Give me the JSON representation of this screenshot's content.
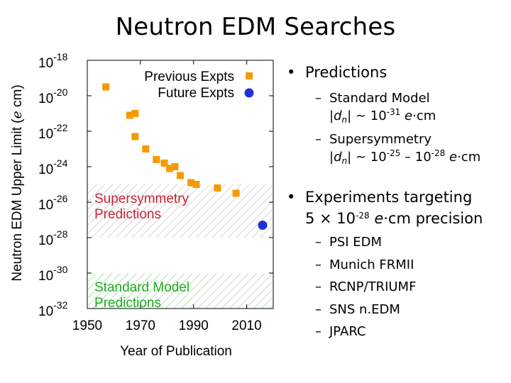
{
  "title": "Neutron EDM Searches",
  "chart_data": {
    "type": "scatter",
    "ylabel": "Neutron EDM Upper Limit (e cm)",
    "ylabel_pre": "Neutron EDM Upper Limit (",
    "ylabel_unit": "e",
    "ylabel_post": " cm)",
    "xlabel": "Year of Publication",
    "xlim": [
      1950,
      2020
    ],
    "ylim_log10": [
      -32,
      -18
    ],
    "x_ticks": [
      1950,
      1970,
      1990,
      2010
    ],
    "y_ticks": [
      {
        "exp": -18,
        "base": "10",
        "sup": "-18"
      },
      {
        "exp": -20,
        "base": "10",
        "sup": "-20"
      },
      {
        "exp": -22,
        "base": "10",
        "sup": "-22"
      },
      {
        "exp": -24,
        "base": "10",
        "sup": "-24"
      },
      {
        "exp": -26,
        "base": "10",
        "sup": "-26"
      },
      {
        "exp": -28,
        "base": "10",
        "sup": "-28"
      },
      {
        "exp": -30,
        "base": "10",
        "sup": "-30"
      },
      {
        "exp": -32,
        "base": "10",
        "sup": "-32"
      }
    ],
    "series": [
      {
        "name": "Previous Expts",
        "color": "#f59a00",
        "marker": "square",
        "points": [
          {
            "x": 1957,
            "y_log10": -19.5
          },
          {
            "x": 1966,
            "y_log10": -21.1
          },
          {
            "x": 1968,
            "y_log10": -21.0
          },
          {
            "x": 1968,
            "y_log10": -22.3
          },
          {
            "x": 1972,
            "y_log10": -23.0
          },
          {
            "x": 1976,
            "y_log10": -23.6
          },
          {
            "x": 1979,
            "y_log10": -23.8
          },
          {
            "x": 1981,
            "y_log10": -24.1
          },
          {
            "x": 1983,
            "y_log10": -24.0
          },
          {
            "x": 1985,
            "y_log10": -24.5
          },
          {
            "x": 1989,
            "y_log10": -24.9
          },
          {
            "x": 1991,
            "y_log10": -25.0
          },
          {
            "x": 1999,
            "y_log10": -25.2
          },
          {
            "x": 2006,
            "y_log10": -25.5
          }
        ]
      },
      {
        "name": "Future Expts",
        "color": "#1c31d8",
        "marker": "circle",
        "points": [
          {
            "x": 2016,
            "y_log10": -27.3
          }
        ]
      }
    ],
    "bands": [
      {
        "label_lines": [
          "Supersymmetry",
          "Predictions"
        ],
        "from_log10": -25,
        "to_log10": -28,
        "color": "#cc2233",
        "hatch_color": "#b8a8a8"
      },
      {
        "label_lines": [
          "Standard Model",
          "Predictions"
        ],
        "from_log10": -30,
        "to_log10": -32,
        "color": "#22aa22",
        "hatch_color": "#66cc66"
      }
    ],
    "legend_position": "top-right"
  },
  "bullets": {
    "predictions": {
      "label": "Predictions",
      "sm_label": "Standard Model",
      "sm_sup": "-31",
      "susy_label": "Supersymmetry",
      "susy_sup_a": "-25",
      "susy_sup_b": "-28",
      "sub_n": "n",
      "d_char": "d",
      "approx": "~",
      "ten": "10",
      "e_char": "e",
      "cm_text": "·cm",
      "range_dash": "–",
      "pipe": "|"
    },
    "experiments": {
      "line1": "Experiments targeting",
      "line2_pre": "5 × 10",
      "line2_sup": "-28",
      "line2_e": "e",
      "line2_post": "·cm precision",
      "items": [
        "PSI EDM",
        "Munich FRMII",
        "RCNP/TRIUMF",
        "SNS n.EDM",
        "JPARC"
      ]
    },
    "bullet_char": "•",
    "dash_char": "–"
  }
}
